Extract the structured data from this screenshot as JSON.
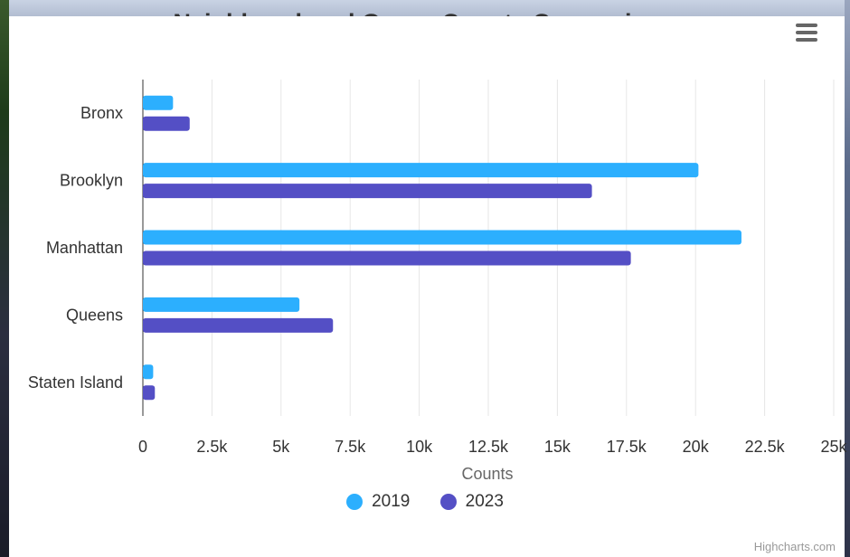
{
  "chart_data": {
    "type": "bar",
    "orientation": "horizontal",
    "title": "Neighbourhood Group Counts Comparison",
    "categories": [
      "Bronx",
      "Brooklyn",
      "Manhattan",
      "Queens",
      "Staten Island"
    ],
    "series": [
      {
        "name": "2019",
        "color": "#2caffe",
        "values": [
          1091,
          20104,
          21661,
          5666,
          373
        ]
      },
      {
        "name": "2023",
        "color": "#544fc5",
        "values": [
          1694,
          16250,
          17658,
          6880,
          434
        ]
      }
    ],
    "xlabel": "Counts",
    "xlim": [
      0,
      25000
    ],
    "xticks": [
      {
        "value": 0,
        "label": "0"
      },
      {
        "value": 2500,
        "label": "2.5k"
      },
      {
        "value": 5000,
        "label": "5k"
      },
      {
        "value": 7500,
        "label": "7.5k"
      },
      {
        "value": 10000,
        "label": "10k"
      },
      {
        "value": 12500,
        "label": "12.5k"
      },
      {
        "value": 15000,
        "label": "15k"
      },
      {
        "value": 17500,
        "label": "17.5k"
      },
      {
        "value": 20000,
        "label": "20k"
      },
      {
        "value": 22500,
        "label": "22.5k"
      },
      {
        "value": 25000,
        "label": "25k"
      }
    ],
    "grid": true,
    "legend_position": "bottom-center"
  },
  "credits": "Highcharts.com",
  "menu_icon": "hamburger-icon"
}
